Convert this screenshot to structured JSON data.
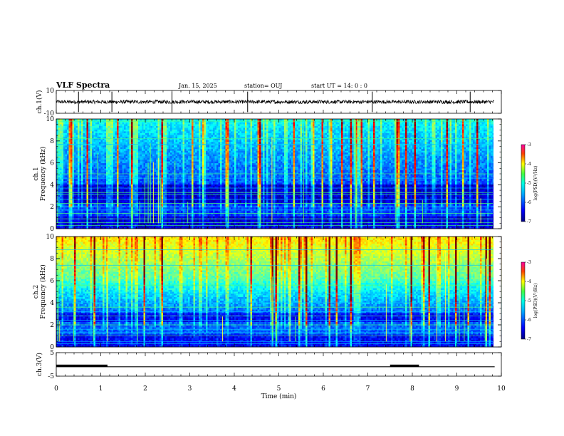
{
  "header": {
    "title": "VLF Spectra",
    "date": "Jan. 15, 2025",
    "station": "station= OUJ",
    "start": "start  UT =   14: 0  : 0"
  },
  "chart_data": {
    "type": "heatmap",
    "xlabel": "Time  (min)",
    "xlim": [
      0,
      10
    ],
    "xticks": [
      "0",
      "1",
      "2",
      "3",
      "4",
      "5",
      "6",
      "7",
      "8",
      "9",
      "10"
    ],
    "panels": [
      {
        "id": "ch1-waveform",
        "type": "line",
        "ylabel": "ch.1(V)",
        "ylim": [
          -10,
          10
        ],
        "yticks": [
          "10",
          "-10"
        ],
        "baseline": 0,
        "spikes": [
          0.5,
          1.25,
          2.6,
          4.3,
          7.1,
          9.3
        ]
      },
      {
        "id": "ch1-spectrogram",
        "type": "heatmap",
        "ylabel": "ch.1\nFrequency  (kHz)",
        "ylabel_lines": [
          "ch.1",
          "Frequency  (kHz)"
        ],
        "ylim": [
          0,
          10
        ],
        "yticks": [
          "0",
          "2",
          "4",
          "6",
          "8",
          "10"
        ],
        "colorbar": {
          "label": "log(PSD)(V²/Hz)",
          "range": [
            -7,
            -3
          ],
          "ticks": [
            "-3",
            "-4",
            "-5",
            "-6",
            "-7"
          ]
        }
      },
      {
        "id": "ch2-spectrogram",
        "type": "heatmap",
        "ylabel": "ch.2\nFrequency  (kHz)",
        "ylabel_lines": [
          "ch.2",
          "Frequency  (kHz)"
        ],
        "ylim": [
          0,
          10
        ],
        "yticks": [
          "0",
          "2",
          "4",
          "6",
          "8",
          "10"
        ],
        "colorbar": {
          "label": "log(PSD)(V²/Hz)",
          "range": [
            -7,
            -3
          ],
          "ticks": [
            "-3",
            "-4",
            "-5",
            "-6",
            "-7"
          ]
        }
      },
      {
        "id": "ch3-trace",
        "type": "line",
        "ylabel": "ch.3(V)",
        "ylim": [
          -5,
          5
        ],
        "yticks": [
          "5",
          "-5"
        ],
        "baseline": -1,
        "high_segments": [
          [
            0,
            1.15
          ],
          [
            7.5,
            8.15
          ]
        ]
      }
    ],
    "colors": {
      "background_dark": "#00007a",
      "mid": "#0050ff",
      "bright": "#7fff00",
      "hot": "#ff2000"
    }
  }
}
